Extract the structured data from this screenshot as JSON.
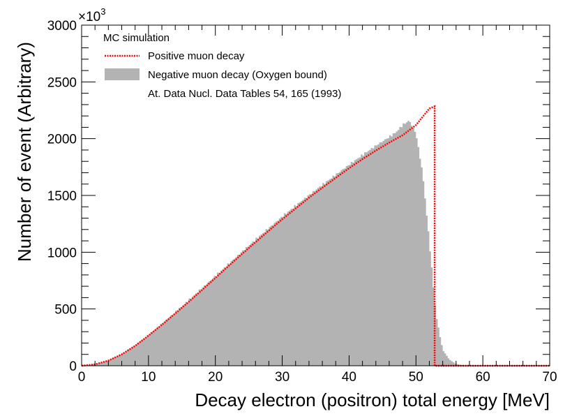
{
  "chart_data": {
    "type": "histogram",
    "xlabel": "Decay electron (positron) total energy [MeV]",
    "ylabel": "Number of event (Arbitrary)",
    "xlim": [
      0,
      70
    ],
    "ylim": [
      0,
      3000
    ],
    "y_multiplier_base": "×10",
    "y_multiplier_exp": "3",
    "x_ticks": [
      "0",
      "10",
      "20",
      "30",
      "40",
      "50",
      "60",
      "70"
    ],
    "y_ticks": [
      "0",
      "500",
      "1000",
      "1500",
      "2000",
      "2500",
      "3000"
    ],
    "legend": {
      "header": "MC simulation",
      "entries": [
        "Positive muon decay",
        "Negative muon decay (Oxygen bound)",
        "At. Data Nucl. Data Tables 54, 165 (1993)"
      ]
    },
    "series": [
      {
        "name": "Positive muon decay",
        "style": "dotted-line",
        "color": "#ff0000",
        "x": [
          0,
          2,
          4,
          6,
          8,
          10,
          12,
          14,
          16,
          18,
          20,
          22,
          24,
          26,
          28,
          30,
          32,
          34,
          36,
          38,
          40,
          42,
          44,
          46,
          48,
          50,
          52,
          52.8,
          52.8,
          54,
          70
        ],
        "y": [
          0,
          12,
          45,
          100,
          175,
          265,
          360,
          460,
          562,
          667,
          773,
          880,
          985,
          1088,
          1190,
          1290,
          1385,
          1480,
          1568,
          1655,
          1740,
          1820,
          1895,
          1965,
          2030,
          2120,
          2265,
          2285,
          0,
          0,
          0
        ]
      },
      {
        "name": "Negative muon decay (Oxygen bound)",
        "style": "filled-histogram",
        "color": "#b3b3b3",
        "x": [
          0,
          2,
          4,
          6,
          8,
          10,
          12,
          14,
          16,
          18,
          20,
          22,
          24,
          26,
          28,
          30,
          32,
          34,
          36,
          38,
          40,
          42,
          44,
          46,
          47,
          48,
          49,
          50,
          51,
          52,
          53,
          54,
          55,
          56,
          57,
          58,
          60,
          70
        ],
        "y": [
          0,
          14,
          48,
          104,
          181,
          272,
          370,
          472,
          576,
          683,
          790,
          898,
          1005,
          1110,
          1213,
          1314,
          1410,
          1503,
          1593,
          1682,
          1770,
          1856,
          1938,
          2015,
          2055,
          2120,
          2160,
          2050,
          1700,
          1100,
          450,
          140,
          55,
          15,
          4,
          1,
          0,
          0
        ]
      }
    ]
  }
}
